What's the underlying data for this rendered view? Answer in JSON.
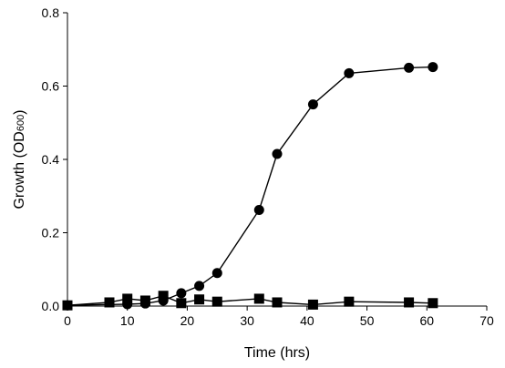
{
  "chart_data": {
    "type": "line",
    "title": "",
    "xlabel": "Time (hrs)",
    "ylabel_main": "Growth (OD",
    "ylabel_sub": "600",
    "ylabel_close": ")",
    "xlim": [
      0,
      70
    ],
    "ylim": [
      0,
      0.8
    ],
    "x_ticks": [
      0,
      10,
      20,
      30,
      40,
      50,
      60,
      70
    ],
    "x_tick_labels": [
      "0",
      "10",
      "20",
      "30",
      "40",
      "50",
      "60",
      "70"
    ],
    "y_ticks": [
      0,
      0.2,
      0.4,
      0.6,
      0.8
    ],
    "y_tick_labels": [
      "0.0",
      "0.2",
      "0.4",
      "0.6",
      "0.8"
    ],
    "grid": false,
    "legend": "none",
    "series": [
      {
        "marker": "circle",
        "color": "#000000",
        "x": [
          0,
          10,
          13,
          16,
          19,
          22,
          25,
          32,
          35,
          41,
          47,
          57,
          61
        ],
        "y": [
          0.002,
          0.005,
          0.007,
          0.015,
          0.035,
          0.055,
          0.09,
          0.262,
          0.415,
          0.55,
          0.635,
          0.65,
          0.652
        ]
      },
      {
        "marker": "square",
        "color": "#000000",
        "x": [
          0,
          7,
          10,
          13,
          16,
          19,
          22,
          25,
          32,
          35,
          41,
          47,
          57,
          61
        ],
        "y": [
          0.002,
          0.01,
          0.02,
          0.015,
          0.028,
          0.008,
          0.018,
          0.012,
          0.02,
          0.01,
          0.004,
          0.012,
          0.01,
          0.008
        ]
      }
    ]
  }
}
